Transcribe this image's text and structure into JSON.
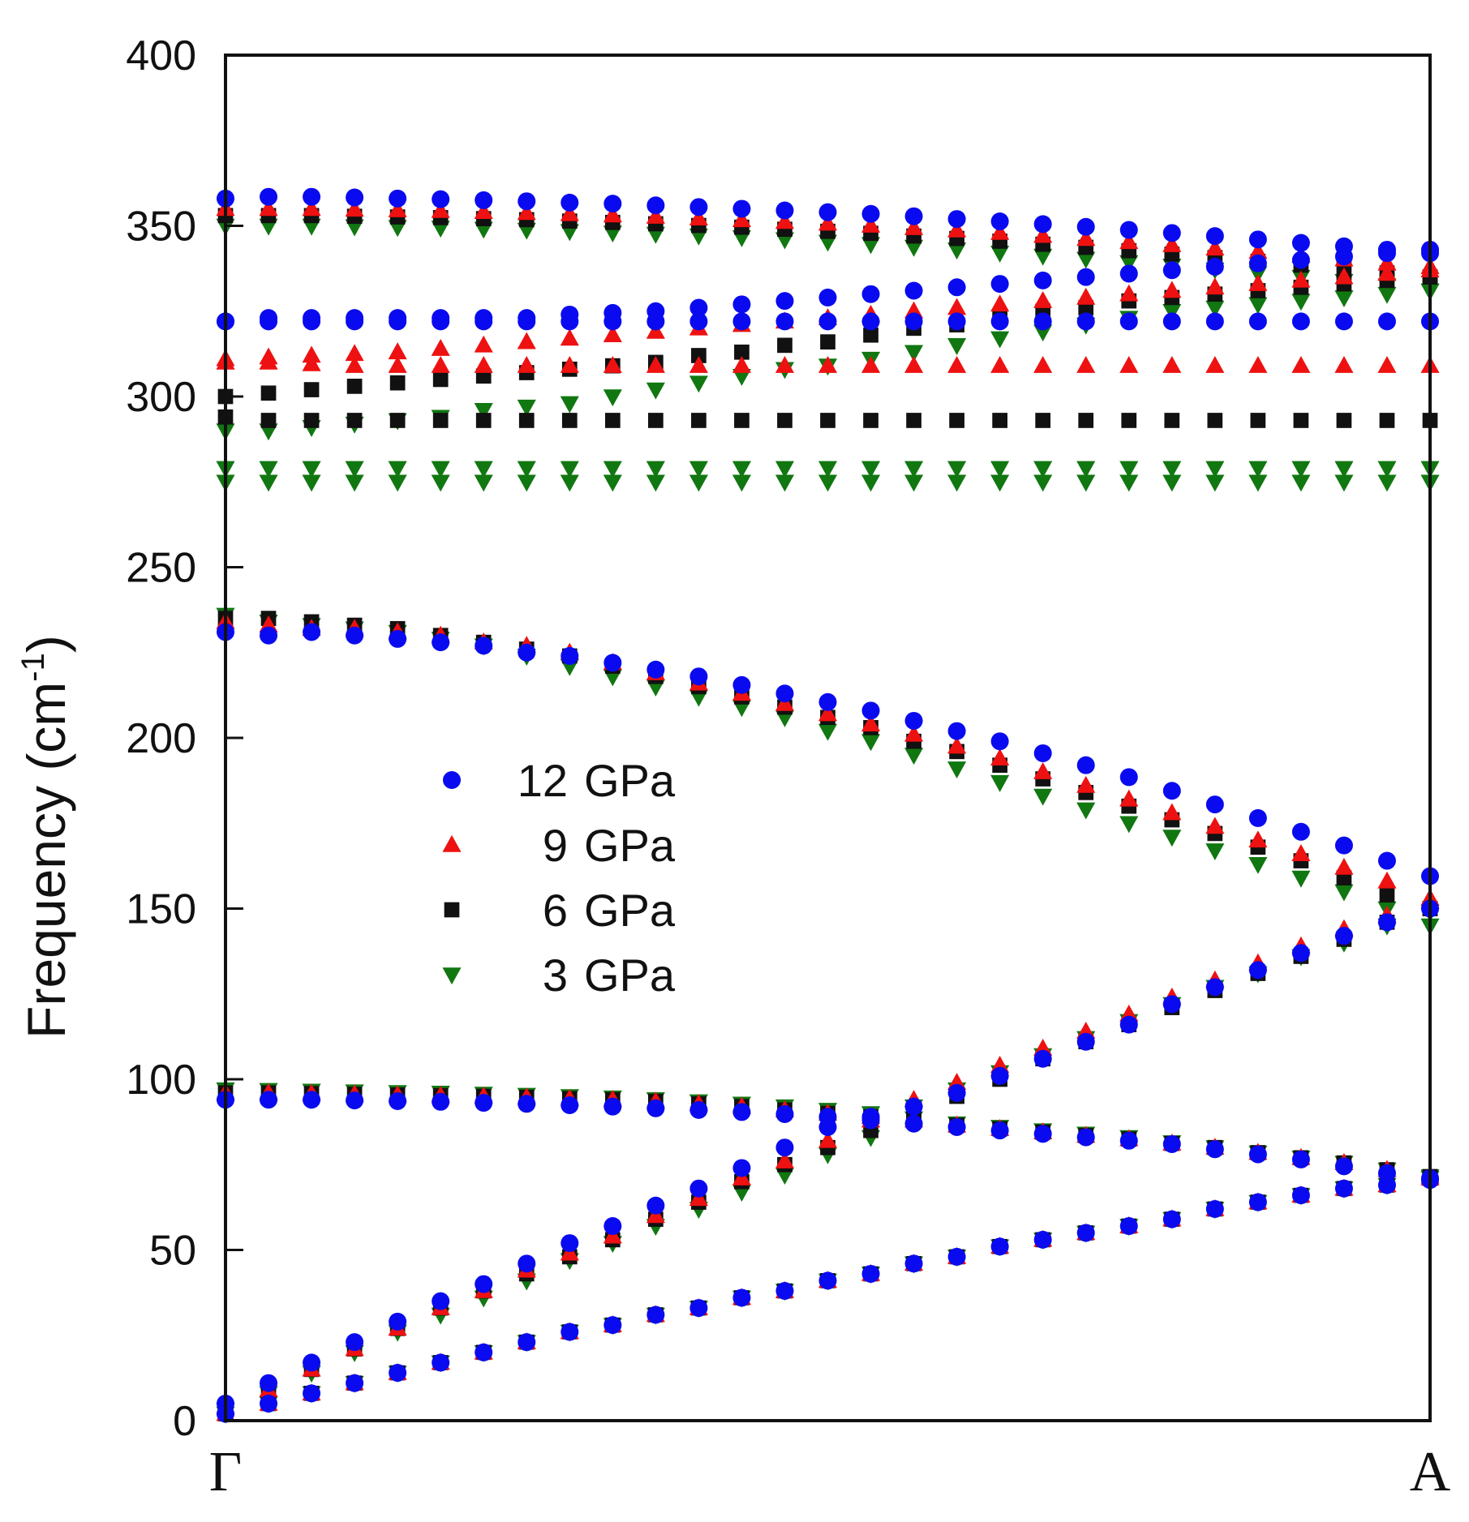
{
  "chart_data": {
    "type": "scatter",
    "title": "",
    "xlabel": "",
    "ylabel": "Frequency (cm",
    "ylabel_sup": "-1",
    "ylabel_close": ")",
    "x_ticks": [
      {
        "pos": 0,
        "label": "Γ"
      },
      {
        "pos": 28,
        "label": "A"
      }
    ],
    "xlim": [
      0,
      28
    ],
    "ylim": [
      0,
      400
    ],
    "y_ticks": [
      0,
      50,
      100,
      150,
      200,
      250,
      300,
      350,
      400
    ],
    "grid": false,
    "legend_position": "center-left",
    "x": [
      0,
      1,
      2,
      3,
      4,
      5,
      6,
      7,
      8,
      9,
      10,
      11,
      12,
      13,
      14,
      15,
      16,
      17,
      18,
      19,
      20,
      21,
      22,
      23,
      24,
      25,
      26,
      27,
      28
    ],
    "series": [
      {
        "name": "12 GPa",
        "label_num": "12",
        "label_unit": "GPa",
        "marker": "circle",
        "color": "#0a0af0",
        "branches": [
          [
            358,
            358.5,
            358.5,
            358.3,
            358,
            357.8,
            357.5,
            357.2,
            356.8,
            356.5,
            356,
            355.5,
            355,
            354.5,
            354,
            353.5,
            352.8,
            352,
            351.3,
            350.5,
            349.7,
            348.8,
            347.9,
            347,
            346,
            345,
            344,
            343,
            342
          ],
          [
            322,
            323,
            323,
            323,
            323,
            323,
            323,
            323,
            324,
            324.5,
            325,
            326,
            327,
            328,
            329,
            330,
            331,
            332,
            333,
            334,
            335,
            336,
            337,
            338,
            339,
            340,
            341,
            342,
            343
          ],
          [
            322,
            322,
            322,
            322,
            322,
            322,
            322,
            322,
            322,
            322,
            322,
            322,
            322,
            322,
            322,
            322,
            322,
            322,
            322,
            322,
            322,
            322,
            322,
            322,
            322,
            322,
            322,
            322,
            322
          ],
          [
            231,
            230,
            231,
            230,
            229,
            228,
            227,
            225,
            224,
            222,
            220,
            218,
            215.5,
            213,
            210.5,
            208,
            205,
            202,
            199,
            195.5,
            192,
            188.5,
            184.5,
            180.5,
            176.5,
            172.5,
            168.5,
            164,
            159.5
          ],
          [
            94,
            94,
            94,
            93.8,
            93.6,
            93.4,
            93.1,
            92.8,
            92.4,
            92,
            91.5,
            91,
            90.4,
            89.8,
            89,
            88,
            87,
            86,
            85,
            84,
            83,
            82,
            81,
            79.5,
            78,
            76.5,
            74.5,
            72.5,
            70.5
          ],
          [
            5,
            11,
            17,
            23,
            29,
            35,
            40,
            46,
            52,
            57,
            63,
            68,
            74,
            80,
            86,
            89,
            92,
            96,
            101,
            106,
            111,
            116,
            122,
            127,
            132,
            137,
            142,
            146,
            150
          ],
          [
            2,
            5,
            8,
            11,
            14,
            17,
            20,
            23,
            26,
            28,
            31,
            33,
            36,
            38,
            41,
            43,
            46,
            48,
            51,
            53,
            55,
            57,
            59,
            62,
            64,
            66,
            68,
            69,
            71
          ]
        ]
      },
      {
        "name": "9 GPa",
        "label_num": "9",
        "label_unit": "GPa",
        "marker": "triangle-up",
        "color": "#ee1111",
        "branches": [
          [
            355,
            355,
            355,
            354.8,
            354.6,
            354.4,
            354.1,
            353.8,
            353.5,
            353.1,
            352.7,
            352.2,
            351.7,
            351.2,
            350.7,
            350.1,
            349.4,
            348.7,
            348,
            347.1,
            346.2,
            345.3,
            344.4,
            343.4,
            342.4,
            341.3,
            340.2,
            339,
            338
          ],
          [
            311,
            311.5,
            312,
            312.5,
            313,
            314,
            315,
            316,
            317,
            318,
            319,
            320,
            321,
            322,
            323,
            324,
            325,
            326,
            327,
            328,
            329,
            330,
            331,
            332,
            333,
            334,
            335,
            336,
            337
          ],
          [
            310,
            310,
            309.5,
            309,
            309,
            309,
            309,
            309,
            309,
            309,
            309,
            309,
            309,
            309,
            309,
            309,
            309,
            309,
            309,
            309,
            309,
            309,
            309,
            309,
            309,
            309,
            309,
            309,
            309
          ],
          [
            234,
            233,
            232,
            232,
            231,
            230,
            228,
            227,
            225,
            222,
            219,
            216,
            213,
            210,
            207,
            204,
            201,
            197.5,
            194,
            190,
            186,
            182,
            178,
            174,
            170,
            166,
            162,
            158,
            153
          ],
          [
            96,
            96,
            95.8,
            95.6,
            95.4,
            95.2,
            95,
            94.7,
            94.3,
            94,
            93.5,
            92.8,
            92,
            91,
            90,
            89,
            88,
            86.5,
            85.5,
            84.5,
            83.5,
            82.5,
            81.2,
            80,
            78.5,
            77,
            75.5,
            73.5,
            71.5
          ],
          [
            4,
            9,
            15,
            21,
            27,
            33,
            38,
            44,
            49,
            54,
            60,
            65,
            71,
            76,
            82,
            88,
            94,
            99,
            104,
            109,
            114,
            119,
            124,
            129,
            134,
            139,
            144,
            148,
            152
          ],
          [
            2,
            5,
            8,
            11,
            14,
            17,
            20,
            23,
            26,
            28,
            31,
            33,
            36,
            38,
            41,
            43,
            46,
            48,
            51,
            53,
            55,
            57,
            59,
            62,
            64,
            66,
            68,
            69,
            71
          ]
        ]
      },
      {
        "name": "6 GPa",
        "label_num": "6",
        "label_unit": "GPa",
        "marker": "square",
        "color": "#111111",
        "branches": [
          [
            353,
            353,
            353,
            352.8,
            352.6,
            352.4,
            352.1,
            351.8,
            351.4,
            351,
            350.6,
            350.1,
            349.6,
            349,
            348.4,
            347.8,
            347,
            346.3,
            345.5,
            344.6,
            343.7,
            342.7,
            341.7,
            340.7,
            339.6,
            338.5,
            337.4,
            336.2,
            335
          ],
          [
            300,
            301,
            302,
            303,
            304,
            305,
            306,
            307,
            308,
            309,
            310,
            312,
            313,
            315,
            316,
            318,
            320,
            321,
            323,
            325,
            326,
            328,
            329,
            330,
            331,
            332,
            333,
            334,
            335
          ],
          [
            294,
            293,
            293,
            293,
            293,
            293,
            293,
            293,
            293,
            293,
            293,
            293,
            293,
            293,
            293,
            293,
            293,
            293,
            293,
            293,
            293,
            293,
            293,
            293,
            293,
            293,
            293,
            293,
            293
          ],
          [
            235,
            235,
            234,
            233,
            232,
            230,
            228,
            226,
            224,
            221,
            218,
            215,
            212,
            209,
            206,
            203,
            199,
            196,
            192,
            188,
            184,
            180,
            176,
            172,
            168,
            164,
            159,
            154,
            150
          ],
          [
            96,
            96,
            95.8,
            95.6,
            95.4,
            95.2,
            95,
            94.7,
            94.3,
            94,
            93.5,
            92.8,
            92,
            91,
            90,
            89,
            88,
            86.5,
            85.5,
            84.5,
            83.5,
            82.5,
            81.2,
            80,
            78.5,
            77,
            75.5,
            73.5,
            71.5
          ],
          [
            4,
            9,
            15,
            21,
            27,
            33,
            38,
            43,
            48,
            53,
            59,
            64,
            70,
            75,
            80,
            85,
            90,
            95,
            100,
            106,
            111,
            116,
            121,
            126,
            131,
            136,
            141,
            146,
            150
          ],
          [
            2,
            5,
            8,
            11,
            14,
            17,
            20,
            23,
            26,
            28,
            31,
            33,
            36,
            38,
            41,
            43,
            46,
            48,
            51,
            53,
            55,
            57,
            59,
            62,
            64,
            66,
            68,
            69,
            71
          ]
        ]
      },
      {
        "name": "3 GPa",
        "label_num": "3",
        "label_unit": "GPa",
        "marker": "triangle-down",
        "color": "#117711",
        "branches": [
          [
            350,
            350,
            350,
            349.8,
            349.6,
            349.4,
            349.1,
            348.8,
            348.4,
            348,
            347.6,
            347.1,
            346.6,
            346,
            345.3,
            344.6,
            343.8,
            343,
            342.1,
            341.2,
            340.3,
            339.3,
            338.3,
            337.2,
            336.1,
            335,
            333.8,
            332.5,
            331
          ],
          [
            290,
            290,
            291,
            292,
            293,
            294,
            296,
            297,
            298,
            300,
            302,
            304,
            306,
            308,
            309,
            311,
            313,
            315,
            317,
            319,
            321,
            323,
            325,
            326,
            327,
            328,
            329,
            330,
            331
          ],
          [
            279,
            279,
            279,
            279,
            279,
            279,
            279,
            279,
            279,
            279,
            279,
            279,
            279,
            279,
            279,
            279,
            279,
            279,
            279,
            279,
            279,
            279,
            279,
            279,
            279,
            279,
            279,
            279,
            279
          ],
          [
            275,
            275,
            275,
            275,
            275,
            275,
            275,
            275,
            275,
            275,
            275,
            275,
            275,
            275,
            275,
            275,
            275,
            275,
            275,
            275,
            275,
            275,
            275,
            275,
            275,
            275,
            275,
            275,
            275
          ],
          [
            236,
            234,
            233,
            232,
            231,
            229,
            227,
            224,
            221,
            218,
            215,
            212,
            209,
            206,
            202,
            199,
            195,
            191,
            187,
            183,
            179,
            175,
            171,
            167,
            163,
            159,
            155,
            150,
            145
          ],
          [
            97,
            96.8,
            96.6,
            96.4,
            96.2,
            96,
            95.7,
            95.4,
            95,
            94.6,
            94.1,
            93.5,
            92.8,
            92,
            91,
            90,
            88.5,
            87,
            86,
            85,
            84,
            83,
            81.5,
            80,
            78.5,
            77,
            75.5,
            73.5,
            71.5
          ],
          [
            3,
            8,
            14,
            20,
            26,
            31,
            36,
            41,
            47,
            52,
            57,
            62,
            67,
            72,
            78,
            83,
            92,
            97,
            102,
            107,
            112,
            117,
            122,
            127,
            131,
            136,
            140,
            145,
            149
          ],
          [
            2,
            5,
            8,
            11,
            14,
            17,
            20,
            23,
            26,
            28,
            31,
            33,
            36,
            38,
            41,
            43,
            46,
            48,
            51,
            53,
            55,
            57,
            59,
            62,
            64,
            66,
            68,
            69,
            71
          ]
        ]
      }
    ]
  }
}
